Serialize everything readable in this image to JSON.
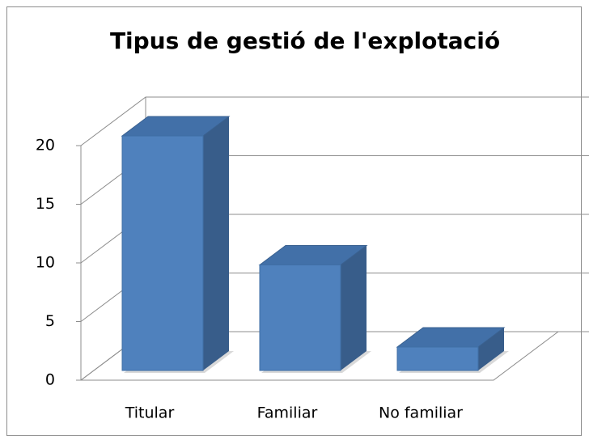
{
  "chart_data": {
    "type": "bar3d",
    "title": "Tipus de gestió de l'explotació",
    "categories": [
      "Titular",
      "Familiar",
      "No familiar"
    ],
    "values": [
      20,
      9,
      2
    ],
    "color": "#4f81bd",
    "ylim": [
      0,
      20
    ],
    "yticks": [
      0,
      5,
      10,
      15,
      20
    ],
    "grid": true
  }
}
